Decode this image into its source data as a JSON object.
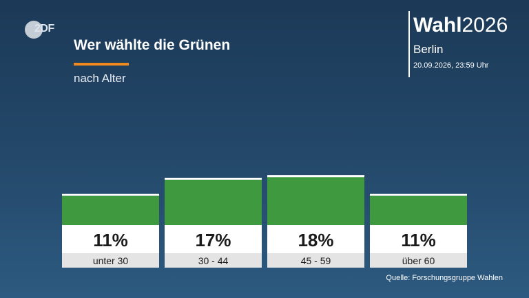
{
  "logo": {
    "text": "2DF",
    "icon": "zdf-logo-icon"
  },
  "header": {
    "title": "Wer wählte die Grünen",
    "subtitle": "nach Alter",
    "accent_color": "#f08a1d"
  },
  "brand": {
    "name_bold": "Wahl",
    "name_year": "2026",
    "region": "Berlin",
    "datetime": "20.09.2026, 23:59 Uhr"
  },
  "chart_data": {
    "type": "bar",
    "title": "Wer wählte die Grünen",
    "subtitle": "nach Alter",
    "categories": [
      "unter 30",
      "30 - 44",
      "45 - 59",
      "über 60"
    ],
    "values": [
      11,
      17,
      18,
      11
    ],
    "value_labels": [
      "11%",
      "17%",
      "18%",
      "11%"
    ],
    "unit": "%",
    "bar_color": "#3f9a3f",
    "grid": false,
    "legend": "none"
  },
  "source": "Quelle: Forschungsgruppe Wahlen"
}
